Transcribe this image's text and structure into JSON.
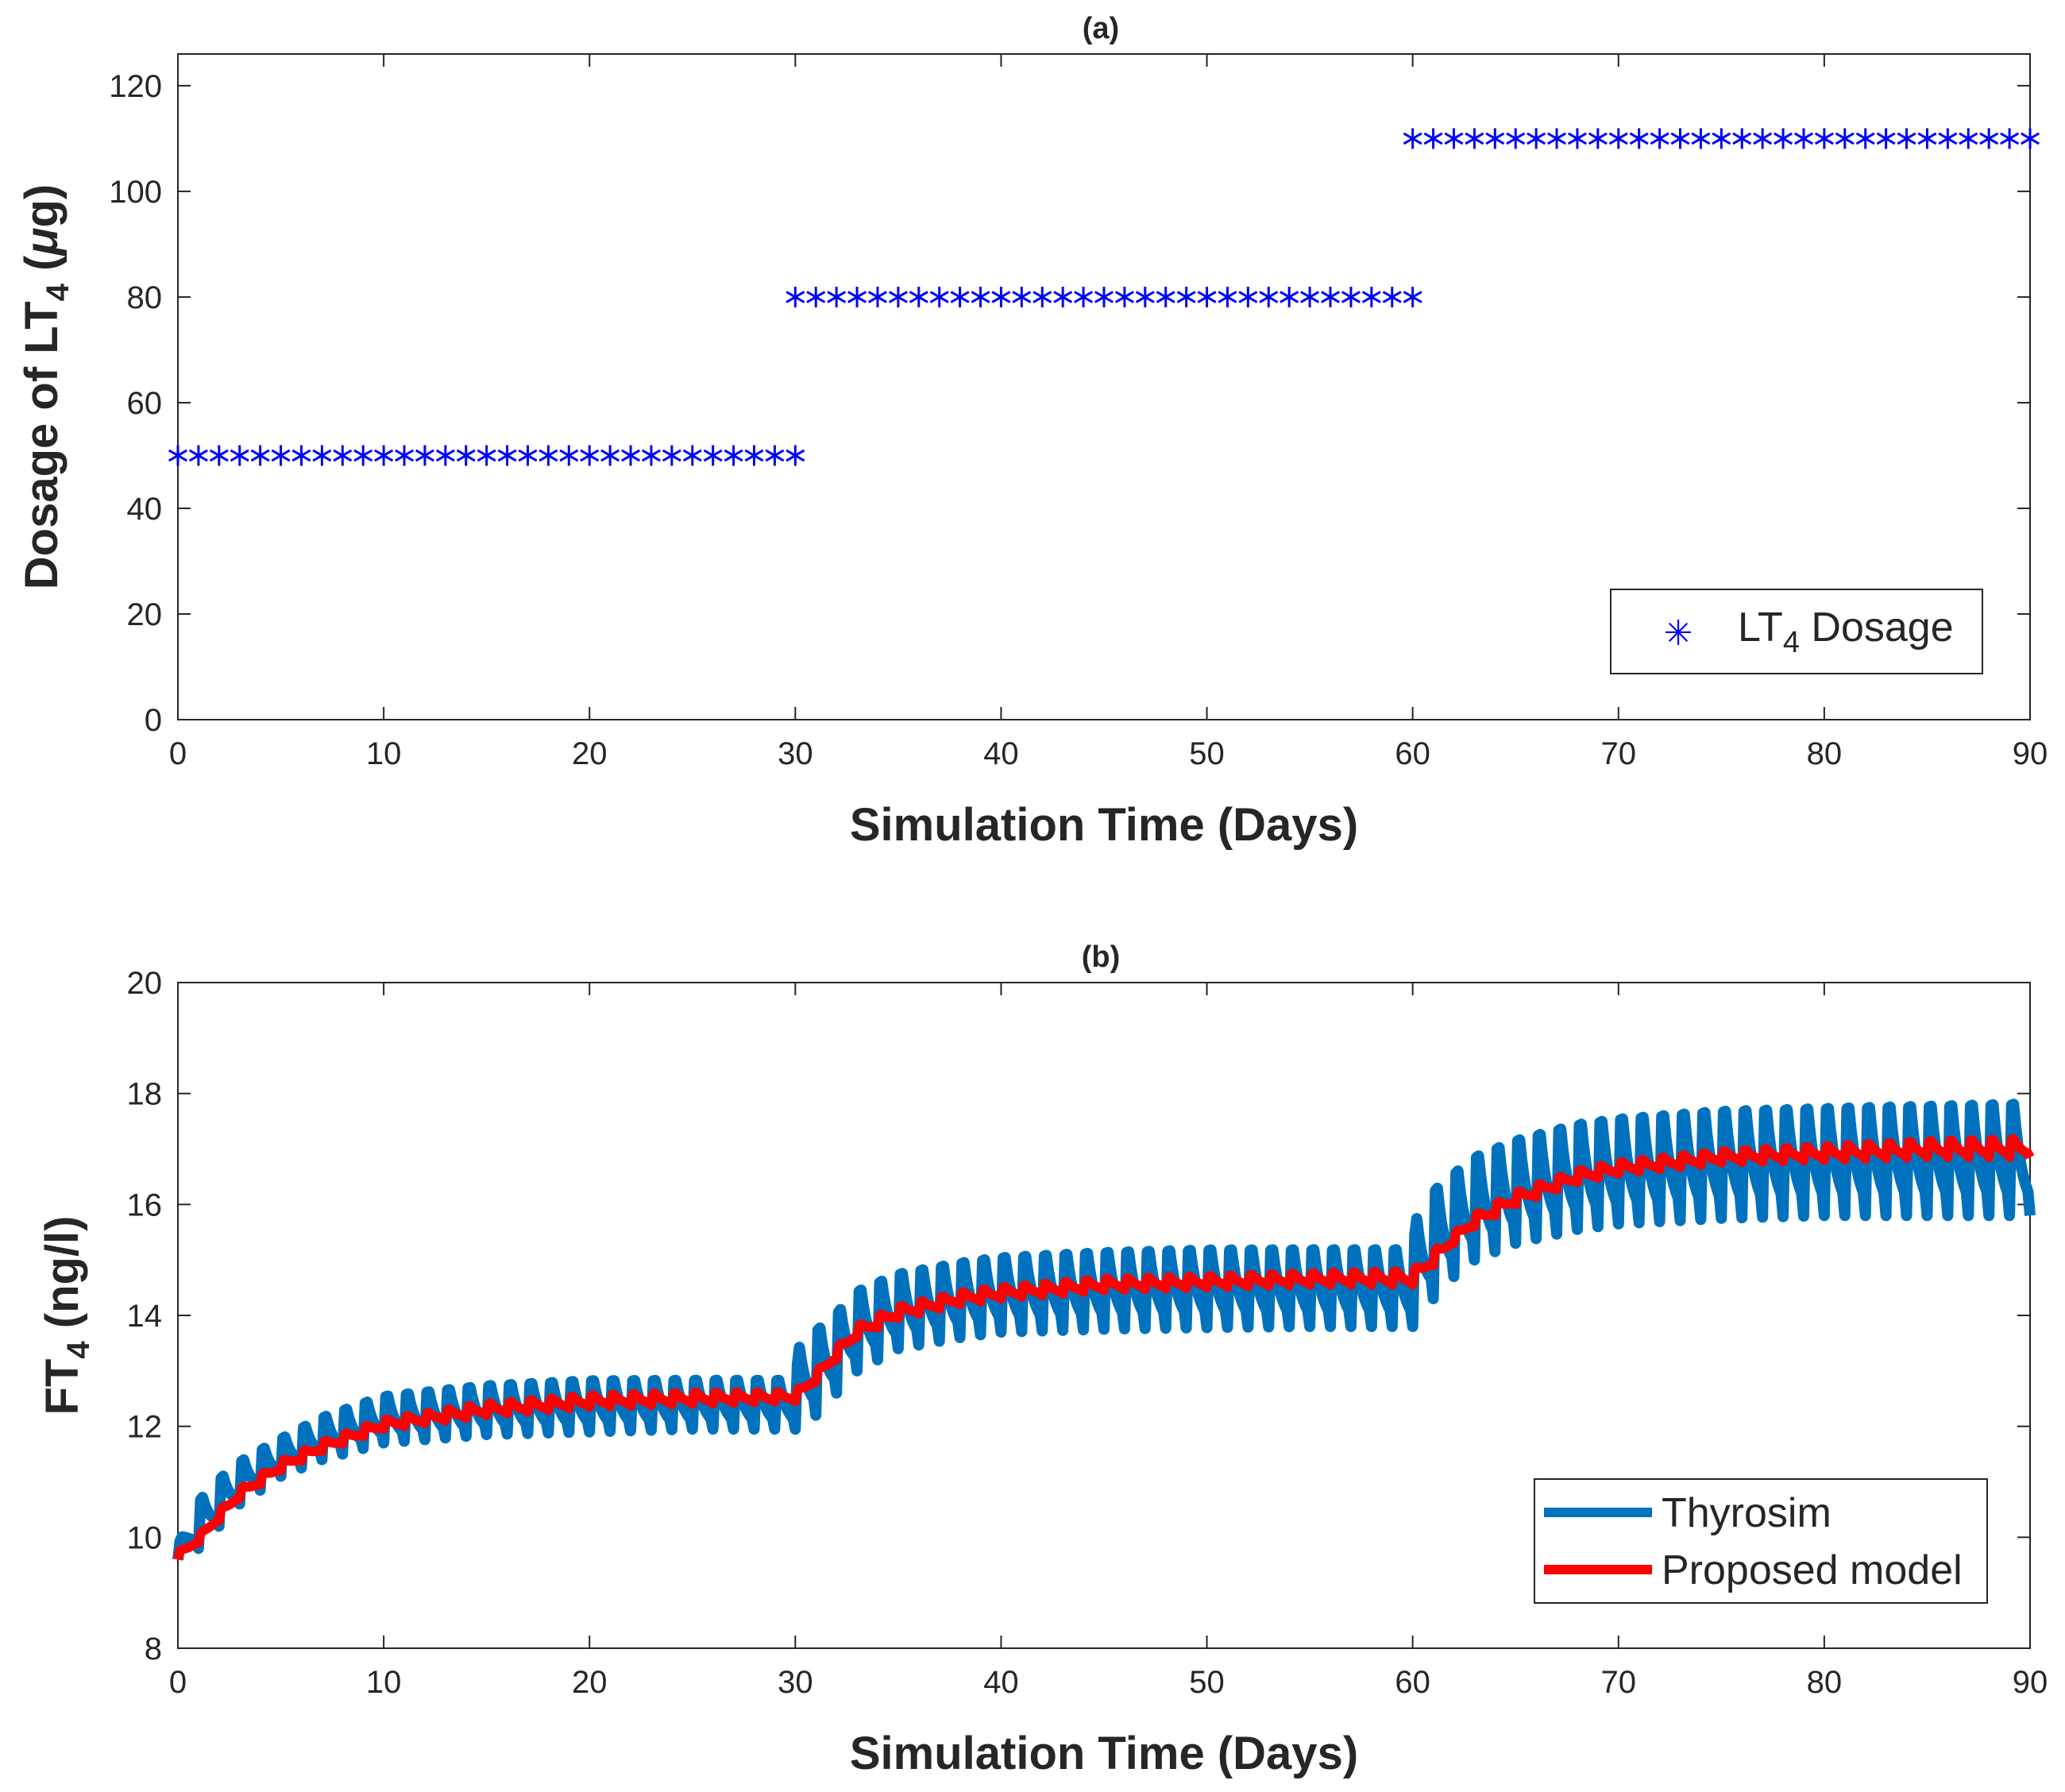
{
  "chart_data": [
    {
      "type": "scatter",
      "title": "(a)",
      "xlabel": "Simulation Time (Days)",
      "ylabel": {
        "prefix": "Dosage of LT",
        "sub": "4",
        "suffix": " (",
        "mu": "μ",
        "unit": "g)"
      },
      "xlim": [
        0,
        90
      ],
      "ylim": [
        0,
        126
      ],
      "xticks": [
        "0",
        "10",
        "20",
        "30",
        "40",
        "50",
        "60",
        "70",
        "80",
        "90"
      ],
      "yticks": [
        "0",
        "20",
        "40",
        "60",
        "80",
        "100",
        "120"
      ],
      "grid": false,
      "legend_position": "bottom-right",
      "marker_symbol": "✳",
      "series": [
        {
          "name": {
            "main": "LT",
            "sub": "4",
            "rest": " Dosage"
          },
          "color": "#0000ff",
          "marker": "asterisk",
          "segments": [
            {
              "x_start": 0,
              "x_end": 30,
              "x_step": 1,
              "y": 50
            },
            {
              "x_start": 30,
              "x_end": 60,
              "x_step": 1,
              "y": 80
            },
            {
              "x_start": 60,
              "x_end": 90,
              "x_step": 1,
              "y": 110
            }
          ]
        }
      ]
    },
    {
      "type": "line",
      "title": "(b)",
      "xlabel": "Simulation Time (Days)",
      "ylabel": {
        "prefix": "FT",
        "sub": "4",
        "suffix": " (ng/l)"
      },
      "xlim": [
        0,
        90
      ],
      "ylim": [
        8,
        20
      ],
      "xticks": [
        "0",
        "10",
        "20",
        "30",
        "40",
        "50",
        "60",
        "70",
        "80",
        "90"
      ],
      "yticks": [
        "8",
        "10",
        "12",
        "14",
        "16",
        "18",
        "20"
      ],
      "grid": false,
      "legend_position": "bottom-right",
      "x_step_days": 0.1,
      "series": [
        {
          "name": "Thyrosim",
          "color": "#0072bd",
          "oscillation_period_days": 1,
          "envelope_days": [
            0,
            1,
            2,
            3,
            5,
            7,
            10,
            15,
            20,
            25,
            30,
            30.2,
            31,
            32,
            33,
            35,
            38,
            40,
            45,
            50,
            55,
            60,
            60.2,
            61,
            62,
            63,
            65,
            68,
            70,
            75,
            80,
            85,
            90
          ],
          "envelope_min": [
            9.6,
            9.8,
            10.2,
            10.6,
            11.1,
            11.4,
            11.7,
            11.85,
            11.9,
            11.95,
            11.95,
            12.0,
            12.2,
            12.6,
            13.0,
            13.4,
            13.6,
            13.7,
            13.75,
            13.78,
            13.8,
            13.8,
            13.9,
            14.3,
            14.7,
            15.0,
            15.3,
            15.55,
            15.65,
            15.75,
            15.8,
            15.8,
            15.8
          ],
          "envelope_max": [
            9.9,
            10.8,
            11.2,
            11.5,
            11.9,
            12.3,
            12.7,
            12.9,
            13.0,
            13.0,
            13.0,
            13.7,
            14.0,
            14.3,
            14.7,
            15.0,
            15.2,
            15.3,
            15.4,
            15.45,
            15.45,
            15.45,
            16.1,
            16.6,
            16.9,
            17.2,
            17.5,
            17.8,
            17.9,
            18.05,
            18.1,
            18.15,
            18.2
          ]
        },
        {
          "name": "Proposed model",
          "color": "#ff0000",
          "oscillation_period_days": 1,
          "envelope_days": [
            0,
            1,
            2,
            3,
            5,
            7,
            10,
            15,
            20,
            25,
            30,
            31,
            32,
            33,
            35,
            38,
            40,
            45,
            50,
            55,
            60,
            61,
            62,
            63,
            65,
            68,
            70,
            75,
            80,
            85,
            90
          ],
          "envelope_min": [
            9.6,
            9.9,
            10.3,
            10.7,
            11.2,
            11.55,
            11.95,
            12.2,
            12.35,
            12.4,
            12.45,
            12.8,
            13.2,
            13.6,
            13.95,
            14.2,
            14.3,
            14.45,
            14.5,
            14.55,
            14.55,
            14.9,
            15.3,
            15.6,
            16.0,
            16.4,
            16.55,
            16.75,
            16.8,
            16.85,
            16.85
          ],
          "envelope_max": [
            9.75,
            10.05,
            10.5,
            10.9,
            11.4,
            11.75,
            12.15,
            12.45,
            12.6,
            12.65,
            12.65,
            13.0,
            13.45,
            13.85,
            14.2,
            14.45,
            14.55,
            14.7,
            14.75,
            14.8,
            14.85,
            15.2,
            15.5,
            15.85,
            16.25,
            16.65,
            16.8,
            17.0,
            17.1,
            17.2,
            17.25
          ]
        }
      ]
    }
  ]
}
